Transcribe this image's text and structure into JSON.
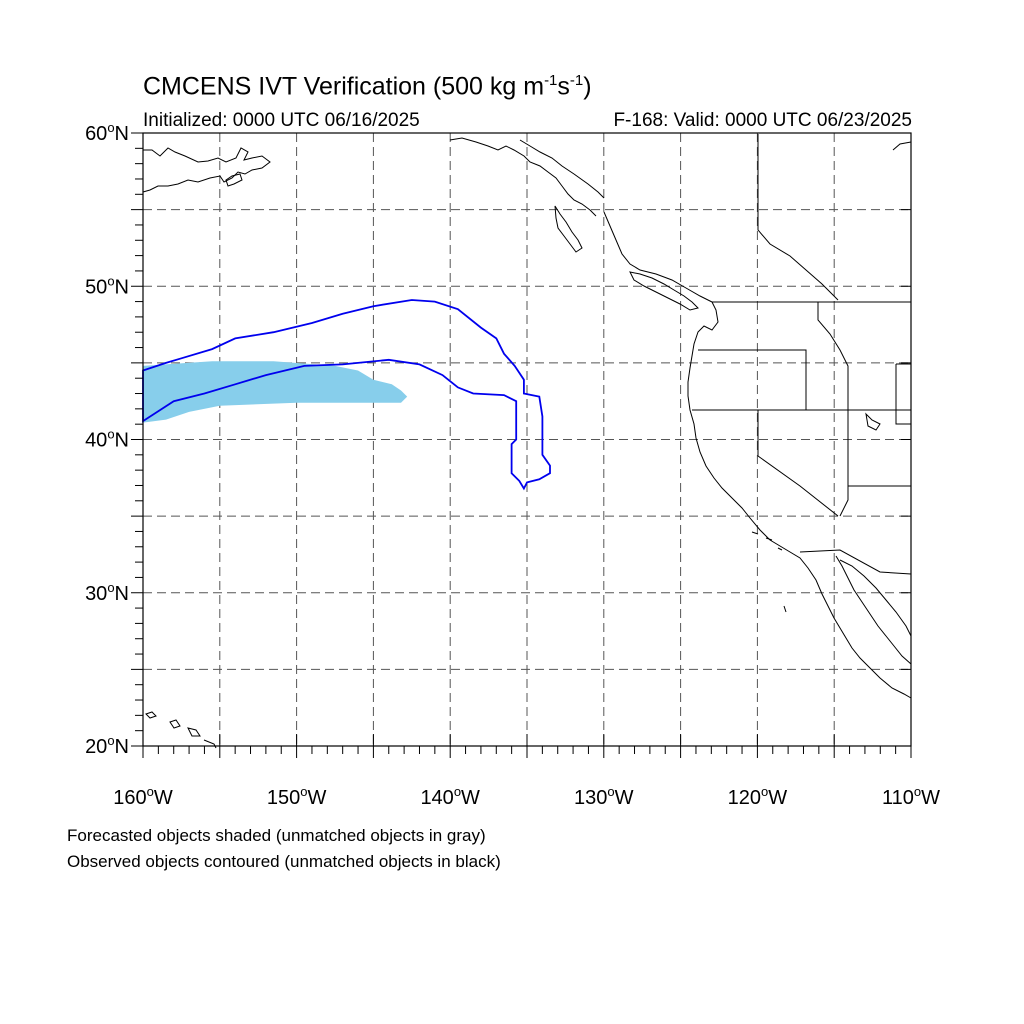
{
  "title": {
    "prefix": "CMCENS IVT Verification (500 kg m",
    "exp1": "-1",
    "mid": "s",
    "exp2": "-1",
    "suffix": ")"
  },
  "initialized": "Initialized: 0000 UTC 06/16/2025",
  "valid": "F-168: Valid: 0000 UTC 06/23/2025",
  "notes": [
    "Forecasted objects shaded (unmatched objects in gray)",
    "Observed objects contoured (unmatched objects in black)"
  ],
  "map": {
    "lon_range": [
      -160,
      -110
    ],
    "lat_range": [
      20,
      60
    ],
    "lat_ticks": [
      {
        "lat": 60,
        "deg": "60",
        "hemi": "N"
      },
      {
        "lat": 50,
        "deg": "50",
        "hemi": "N"
      },
      {
        "lat": 40,
        "deg": "40",
        "hemi": "N"
      },
      {
        "lat": 30,
        "deg": "30",
        "hemi": "N"
      },
      {
        "lat": 20,
        "deg": "20",
        "hemi": "N"
      }
    ],
    "lon_ticks": [
      {
        "lon": -160,
        "deg": "160",
        "hemi": "W"
      },
      {
        "lon": -150,
        "deg": "150",
        "hemi": "W"
      },
      {
        "lon": -140,
        "deg": "140",
        "hemi": "W"
      },
      {
        "lon": -130,
        "deg": "130",
        "hemi": "W"
      },
      {
        "lon": -120,
        "deg": "120",
        "hemi": "W"
      },
      {
        "lon": -110,
        "deg": "110",
        "hemi": "W"
      }
    ],
    "gridlines": "dashed every 5 degrees",
    "forecast_color": "#87CEEB",
    "observed_color": "#0000EE",
    "coast_color": "#000000"
  },
  "forecast_object": {
    "label": "forecast-ivt-object",
    "lonlat": [
      [
        -160.0,
        44.8
      ],
      [
        -155.5,
        45.1
      ],
      [
        -151.5,
        45.1
      ],
      [
        -147.5,
        44.8
      ],
      [
        -146.0,
        44.5
      ],
      [
        -145.0,
        43.9
      ],
      [
        -143.8,
        43.6
      ],
      [
        -143.2,
        43.2
      ],
      [
        -142.8,
        42.8
      ],
      [
        -143.2,
        42.4
      ],
      [
        -150.0,
        42.4
      ],
      [
        -155.0,
        42.2
      ],
      [
        -157.0,
        41.8
      ],
      [
        -158.5,
        41.3
      ],
      [
        -160.0,
        41.1
      ]
    ]
  },
  "observed_object": {
    "label": "observed-ivt-object",
    "lonlat": [
      [
        -160.0,
        44.5
      ],
      [
        -158.5,
        45.0
      ],
      [
        -157.5,
        45.3
      ],
      [
        -155.5,
        45.9
      ],
      [
        -154.0,
        46.6
      ],
      [
        -151.5,
        47.0
      ],
      [
        -149.0,
        47.6
      ],
      [
        -147.0,
        48.2
      ],
      [
        -145.0,
        48.7
      ],
      [
        -142.5,
        49.1
      ],
      [
        -141.0,
        49.0
      ],
      [
        -139.5,
        48.5
      ],
      [
        -138.0,
        47.3
      ],
      [
        -137.0,
        46.6
      ],
      [
        -136.5,
        45.6
      ],
      [
        -135.8,
        44.8
      ],
      [
        -135.2,
        43.9
      ],
      [
        -135.2,
        43.0
      ],
      [
        -134.2,
        42.8
      ],
      [
        -134.0,
        41.5
      ],
      [
        -134.0,
        39.0
      ],
      [
        -133.5,
        38.3
      ],
      [
        -133.5,
        37.8
      ],
      [
        -134.2,
        37.4
      ],
      [
        -135.0,
        37.2
      ],
      [
        -135.2,
        36.8
      ],
      [
        -135.5,
        37.3
      ],
      [
        -136.0,
        37.8
      ],
      [
        -136.0,
        39.7
      ],
      [
        -135.7,
        40.0
      ],
      [
        -135.7,
        42.5
      ],
      [
        -136.5,
        42.9
      ],
      [
        -138.5,
        43.0
      ],
      [
        -139.5,
        43.4
      ],
      [
        -140.5,
        44.2
      ],
      [
        -142.0,
        44.9
      ],
      [
        -144.0,
        45.2
      ],
      [
        -147.0,
        44.9
      ],
      [
        -149.5,
        44.8
      ],
      [
        -152.0,
        44.2
      ],
      [
        -154.0,
        43.6
      ],
      [
        -156.0,
        43.0
      ],
      [
        -158.0,
        42.5
      ],
      [
        -160.0,
        41.2
      ]
    ]
  }
}
